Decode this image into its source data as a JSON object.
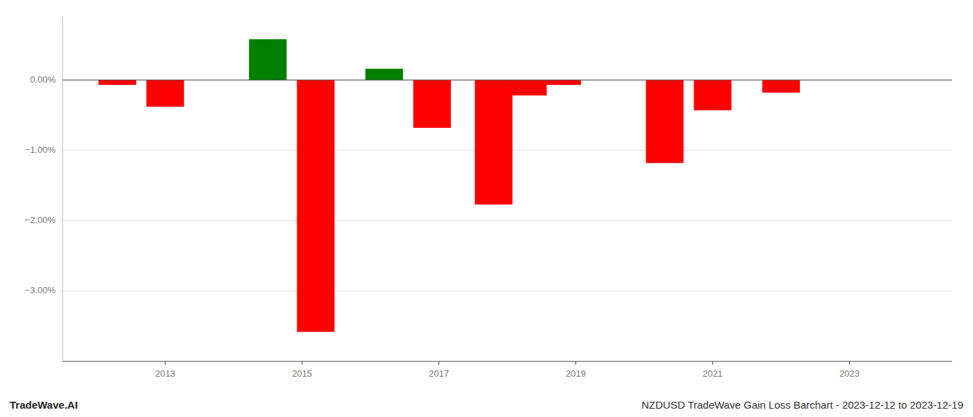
{
  "chart_data": {
    "type": "bar",
    "x": [
      2012.3,
      2013.0,
      2014.5,
      2015.2,
      2016.2,
      2016.9,
      2017.8,
      2018.3,
      2018.8,
      2020.3,
      2021.0,
      2022.0
    ],
    "values": [
      -0.07,
      -0.38,
      0.58,
      -3.58,
      0.16,
      -0.68,
      -1.77,
      -0.22,
      -0.07,
      -1.18,
      -0.43,
      -0.18
    ],
    "colors": [
      "#FF0000",
      "#FF0000",
      "#008000",
      "#FF0000",
      "#008000",
      "#FF0000",
      "#FF0000",
      "#FF0000",
      "#FF0000",
      "#FF0000",
      "#FF0000",
      "#FF0000"
    ],
    "xlim": [
      2011.5,
      2024.5
    ],
    "xticks": [
      2013,
      2015,
      2017,
      2019,
      2021,
      2023
    ],
    "ylim": [
      -4.0,
      0.9
    ],
    "yticks": [
      {
        "value": 0.0,
        "label": "0.00%"
      },
      {
        "value": -1.0,
        "label": "−1.00%"
      },
      {
        "value": -2.0,
        "label": "−2.00%"
      },
      {
        "value": -3.0,
        "label": "−3.00%"
      }
    ],
    "grid": true,
    "annotations": [
      "TradeWave.AI",
      "NZDUSD TradeWave Gain Loss Barchart - 2023-12-12 to 2023-12-19"
    ]
  }
}
